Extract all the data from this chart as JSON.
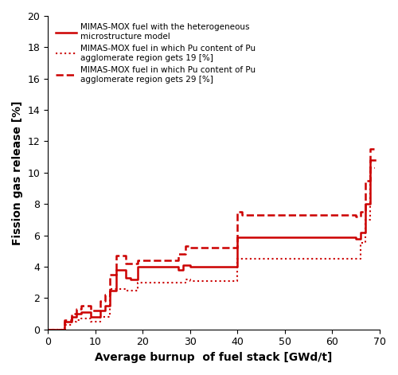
{
  "color": "#cc0000",
  "xlabel": "Average burnup  of fuel stack [GWd/t]",
  "ylabel": "Fission gas release [%]",
  "xlim": [
    0,
    70
  ],
  "ylim": [
    0,
    20
  ],
  "xticks": [
    0,
    10,
    20,
    30,
    40,
    50,
    60,
    70
  ],
  "yticks": [
    0,
    2,
    4,
    6,
    8,
    10,
    12,
    14,
    16,
    18,
    20
  ],
  "legend1": "MIMAS-MOX fuel with the heterogeneous\nmicrostructure model",
  "legend2": "MIMAS-MOX fuel in which Pu content of Pu\nagglomerate region gets 19 [%]",
  "legend3": "MIMAS-MOX fuel in which Pu content of Pu\nagglomerate region gets 29 [%]",
  "solid_x": [
    0,
    3.5,
    3.5,
    5.0,
    5.0,
    6.0,
    6.0,
    7.0,
    7.0,
    9.0,
    9.0,
    11.0,
    11.0,
    12.0,
    12.0,
    13.0,
    13.0,
    14.5,
    14.5,
    16.5,
    16.5,
    17.5,
    17.5,
    19.0,
    19.0,
    27.5,
    27.5,
    28.5,
    28.5,
    30.0,
    30.0,
    40.0,
    40.0,
    41.0,
    41.0,
    65.0,
    65.0,
    66.0,
    66.0,
    67.0,
    67.0,
    68.0,
    68.0,
    69.0
  ],
  "solid_y": [
    0,
    0,
    0.5,
    0.5,
    0.8,
    0.8,
    1.0,
    1.0,
    1.1,
    1.1,
    0.8,
    0.8,
    1.2,
    1.2,
    1.5,
    1.5,
    2.5,
    2.5,
    3.8,
    3.8,
    3.3,
    3.3,
    3.2,
    3.2,
    4.0,
    4.0,
    3.8,
    3.8,
    4.1,
    4.1,
    4.0,
    4.0,
    5.9,
    5.9,
    5.9,
    5.9,
    5.8,
    5.8,
    6.2,
    6.2,
    8.0,
    8.0,
    10.8,
    10.8
  ],
  "dotted_x": [
    0,
    3.5,
    3.5,
    5.0,
    5.0,
    6.0,
    6.0,
    7.0,
    7.0,
    9.0,
    9.0,
    11.0,
    11.0,
    13.0,
    13.0,
    16.5,
    16.5,
    19.0,
    19.0,
    29.0,
    29.0,
    30.0,
    30.0,
    40.0,
    40.0,
    41.0,
    41.0,
    65.0,
    65.0,
    66.0,
    66.0,
    67.0,
    67.0,
    68.0,
    68.0,
    69.0
  ],
  "dotted_y": [
    0,
    0,
    0.3,
    0.3,
    0.5,
    0.5,
    0.6,
    0.6,
    0.7,
    0.7,
    0.5,
    0.5,
    0.8,
    0.8,
    2.6,
    2.6,
    2.5,
    2.5,
    3.0,
    3.0,
    3.2,
    3.2,
    3.1,
    3.1,
    4.5,
    4.5,
    4.5,
    4.5,
    4.5,
    4.5,
    5.5,
    5.5,
    7.0,
    7.0,
    10.3,
    10.3
  ],
  "dashed_x": [
    0,
    3.5,
    3.5,
    5.0,
    5.0,
    6.0,
    6.0,
    7.0,
    7.0,
    9.0,
    9.0,
    11.0,
    11.0,
    12.0,
    12.0,
    13.0,
    13.0,
    14.5,
    14.5,
    16.5,
    16.5,
    19.0,
    19.0,
    27.5,
    27.5,
    29.0,
    29.0,
    30.0,
    30.0,
    40.0,
    40.0,
    41.0,
    41.0,
    65.0,
    65.0,
    66.0,
    66.0,
    67.0,
    67.0,
    68.0,
    68.0,
    69.0
  ],
  "dashed_y": [
    0,
    0,
    0.6,
    0.6,
    1.0,
    1.0,
    1.3,
    1.3,
    1.5,
    1.5,
    1.2,
    1.2,
    1.8,
    1.8,
    2.2,
    2.2,
    3.5,
    3.5,
    4.7,
    4.7,
    4.2,
    4.2,
    4.4,
    4.4,
    4.8,
    4.8,
    5.3,
    5.3,
    5.2,
    5.2,
    7.5,
    7.5,
    7.3,
    7.3,
    7.2,
    7.2,
    7.5,
    7.5,
    9.5,
    9.5,
    11.5,
    11.5
  ]
}
